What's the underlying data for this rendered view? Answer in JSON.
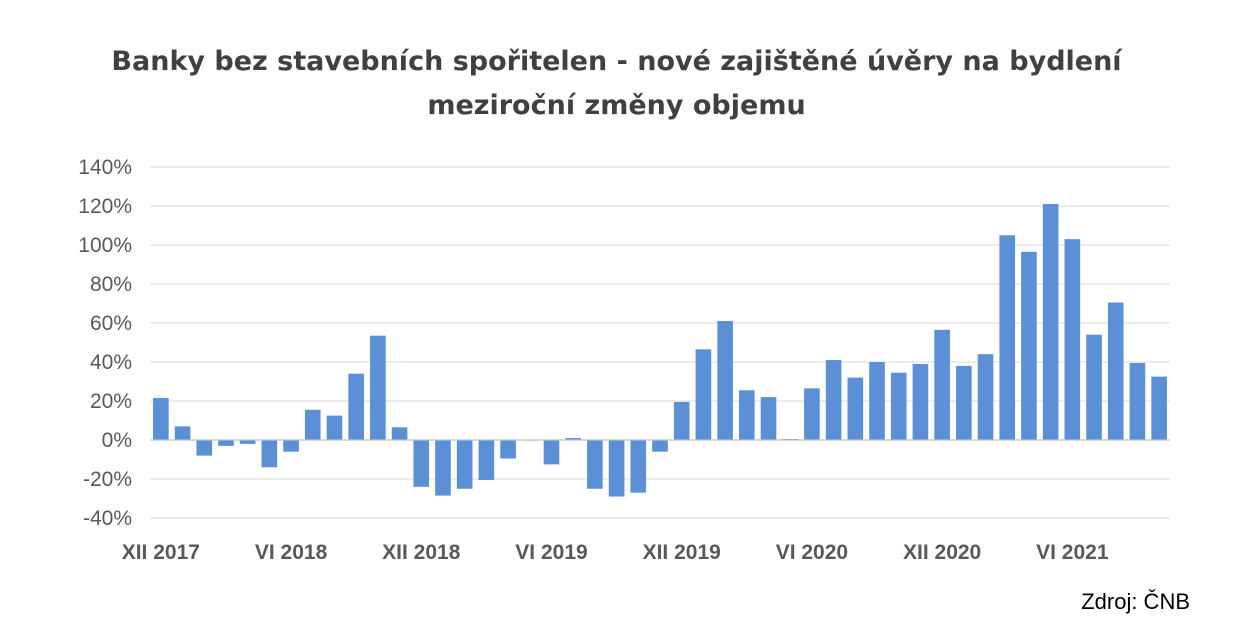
{
  "chart_data": {
    "type": "bar",
    "title": "Banky bez stavebních spořitelen - nové zajištěné úvěry na bydlení",
    "subtitle": "meziroční změny objemu",
    "xlabel": "",
    "ylabel": "",
    "ylim": [
      -40,
      140
    ],
    "yticks": [
      "140%",
      "120%",
      "100%",
      "80%",
      "60%",
      "40%",
      "20%",
      "0%",
      "-20%",
      "-40%"
    ],
    "ytick_values": [
      140,
      120,
      100,
      80,
      60,
      40,
      20,
      0,
      -20,
      -40
    ],
    "xtick_labels": [
      {
        "label": "XII 2017",
        "index": 0
      },
      {
        "label": "VI 2018",
        "index": 6
      },
      {
        "label": "XII 2018",
        "index": 12
      },
      {
        "label": "VI 2019",
        "index": 18
      },
      {
        "label": "XII 2019",
        "index": 24
      },
      {
        "label": "VI 2020",
        "index": 30
      },
      {
        "label": "XII 2020",
        "index": 36
      },
      {
        "label": "VI 2021",
        "index": 42
      }
    ],
    "grid": true,
    "legend": "none",
    "bar_color": "#5b8fd6",
    "values": [
      21.5,
      7,
      -8,
      -3,
      -2,
      -14,
      -6,
      15.5,
      12.5,
      34,
      53.5,
      6.5,
      -24,
      -28.5,
      -25,
      -20.5,
      -9.5,
      0,
      -12.5,
      1,
      -25,
      -29,
      -27,
      -6,
      19.5,
      46.5,
      61,
      25.5,
      22,
      0.5,
      26.5,
      41,
      32,
      40,
      34.5,
      39,
      56.5,
      38,
      44,
      105,
      96.5,
      121,
      103,
      54,
      70.5,
      39.5,
      32.5
    ]
  },
  "source": "Zdroj: ČNB"
}
